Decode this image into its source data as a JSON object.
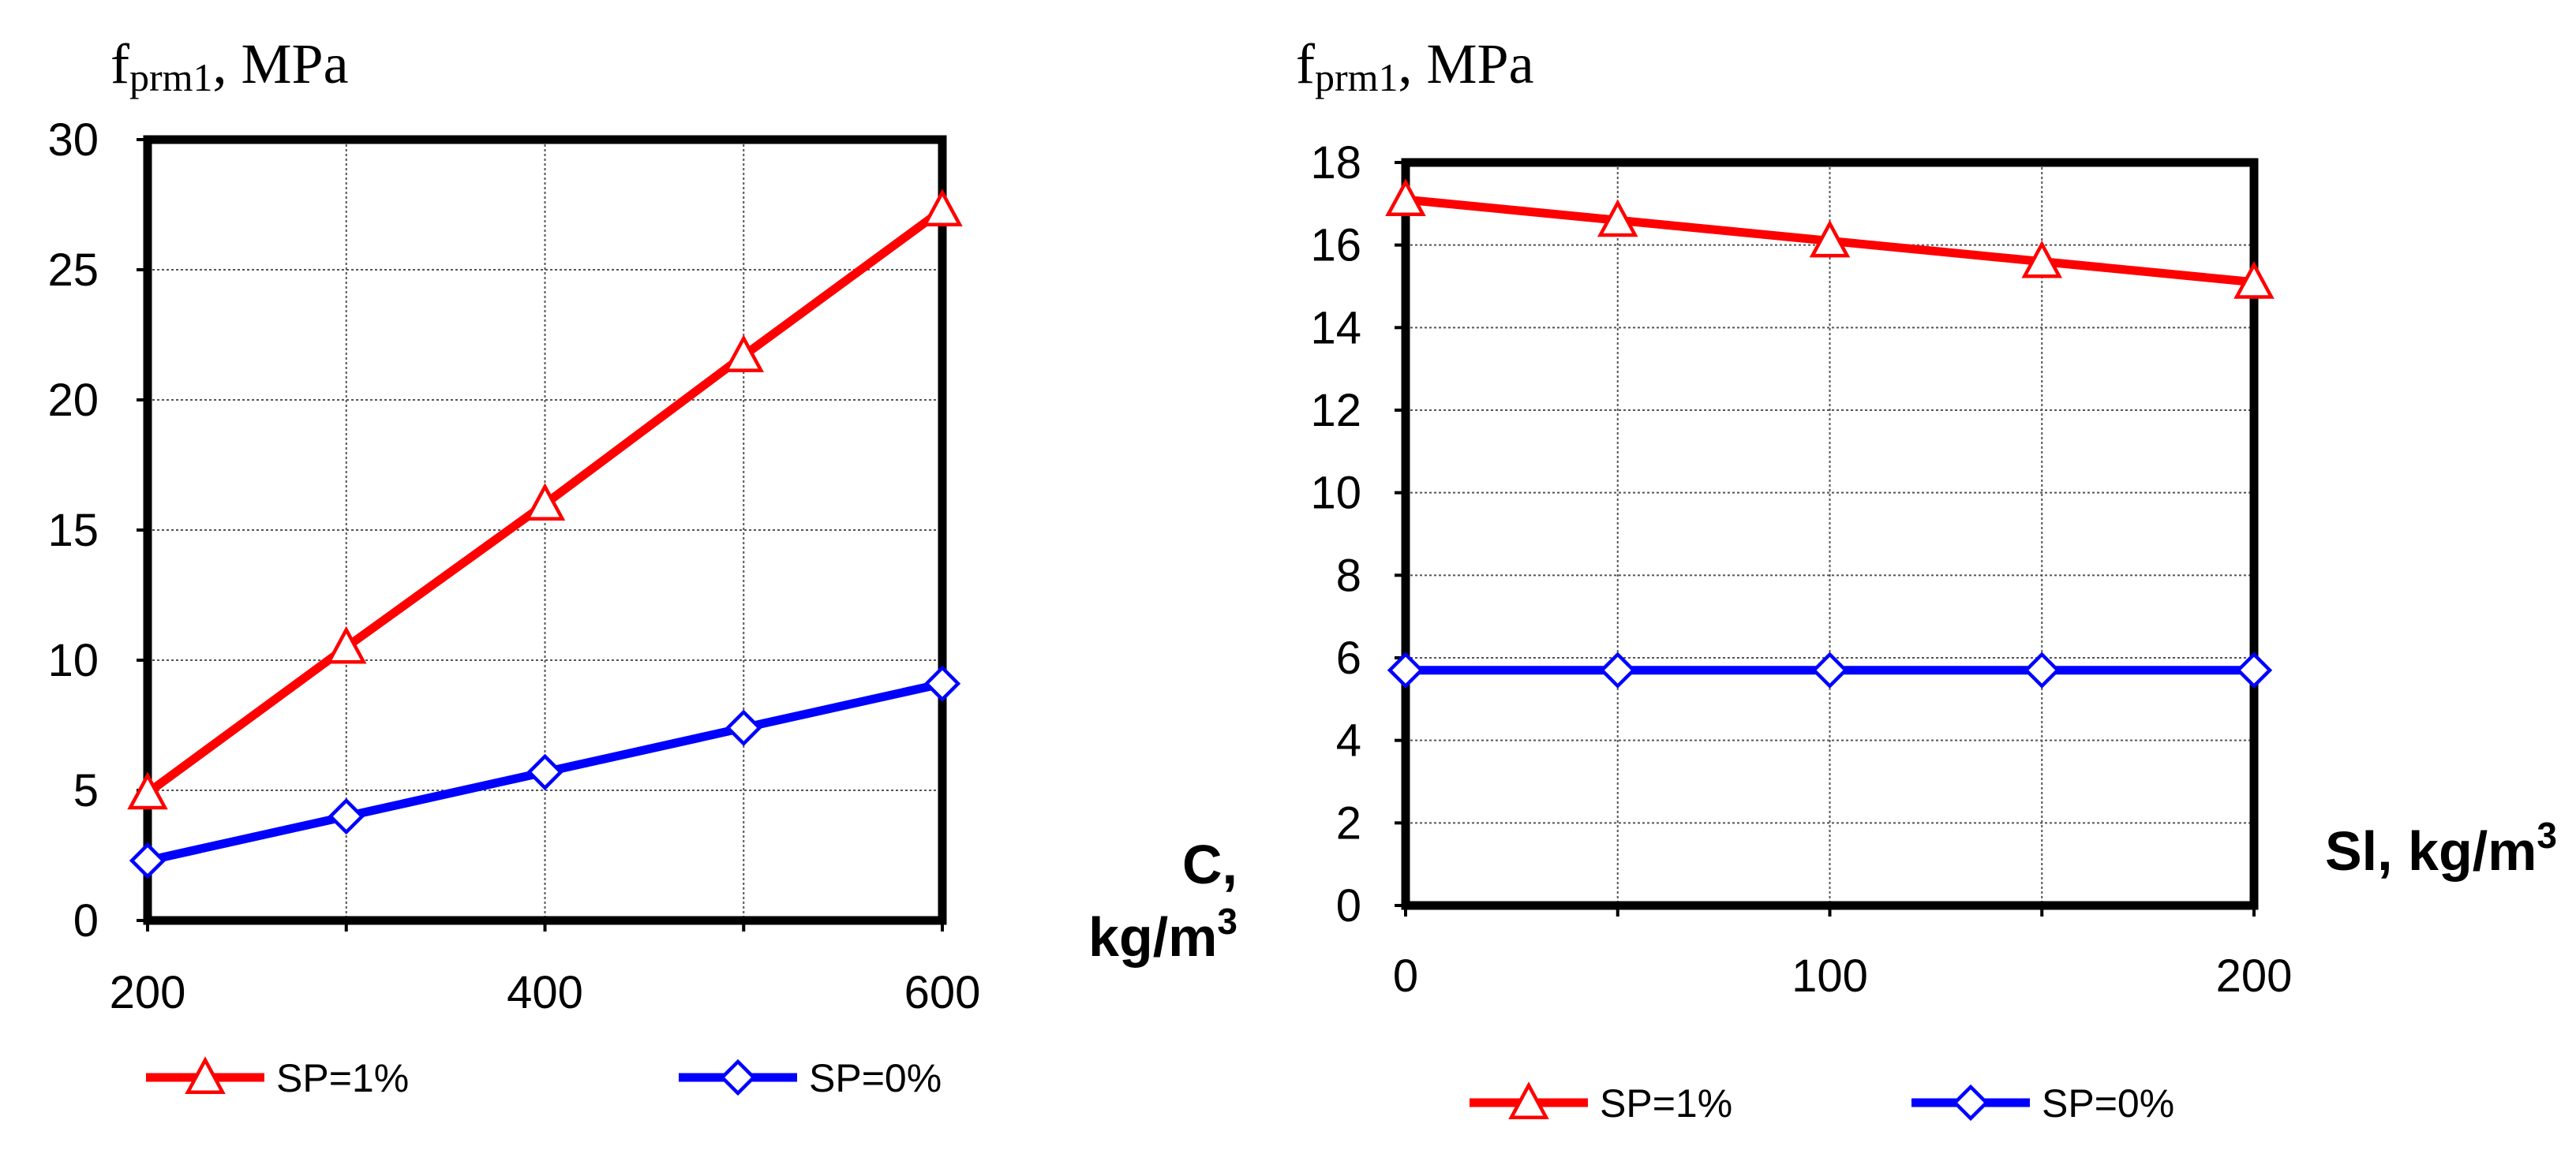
{
  "chart_data": [
    {
      "type": "line",
      "ylabel_main": "f",
      "ylabel_sub": "prm1",
      "ylabel_unit": ", MPa",
      "xlabel_line1": "C,",
      "xlabel_line2": "kg/m",
      "xlabel_sup": "3",
      "x": [
        200,
        300,
        400,
        500,
        600
      ],
      "xlim": [
        200,
        600
      ],
      "ylim": [
        0,
        30
      ],
      "xticks": [
        200,
        400,
        600
      ],
      "xgrid": [
        300,
        400,
        500
      ],
      "yticks": [
        0,
        5,
        10,
        15,
        20,
        25,
        30
      ],
      "grid": true,
      "legend": "bottom",
      "series": [
        {
          "name": "SP=1%",
          "color": "#ff0000",
          "marker": "triangle",
          "values": [
            4.9,
            10.5,
            16.0,
            21.7,
            27.3
          ]
        },
        {
          "name": "SP=0%",
          "color": "#0000ff",
          "marker": "diamond",
          "values": [
            2.3,
            4.0,
            5.7,
            7.4,
            9.1
          ]
        }
      ]
    },
    {
      "type": "line",
      "ylabel_main": "f",
      "ylabel_sub": "prm1",
      "ylabel_unit": ", MPa",
      "xlabel_line1": "Sl, kg/m",
      "xlabel_sup": "3",
      "x": [
        0,
        50,
        100,
        150,
        200
      ],
      "xlim": [
        0,
        200
      ],
      "ylim": [
        0,
        18
      ],
      "xticks": [
        0,
        100,
        200
      ],
      "xgrid": [
        50,
        100,
        150
      ],
      "yticks": [
        0,
        2,
        4,
        6,
        8,
        10,
        12,
        14,
        16,
        18
      ],
      "grid": true,
      "legend": "bottom",
      "series": [
        {
          "name": "SP=1%",
          "color": "#ff0000",
          "marker": "triangle",
          "values": [
            17.1,
            16.6,
            16.1,
            15.6,
            15.1
          ]
        },
        {
          "name": "SP=0%",
          "color": "#0000ff",
          "marker": "diamond",
          "values": [
            5.7,
            5.7,
            5.7,
            5.7,
            5.7
          ]
        }
      ]
    }
  ]
}
